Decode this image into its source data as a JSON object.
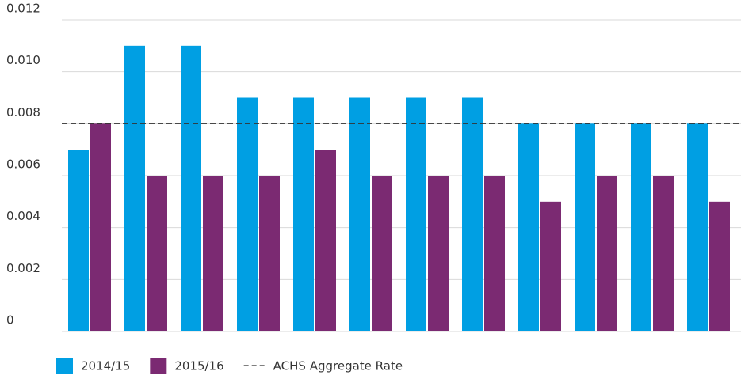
{
  "chart_data": {
    "type": "bar",
    "categories": [
      null,
      null,
      null,
      null,
      null,
      null,
      null,
      null,
      null,
      null,
      null,
      null
    ],
    "series": [
      {
        "name": "2014/15",
        "color": "#009fe3",
        "values": [
          0.007,
          0.011,
          0.011,
          0.009,
          0.009,
          0.009,
          0.009,
          0.009,
          0.008,
          0.008,
          0.008,
          0.008
        ]
      },
      {
        "name": "2015/16",
        "color": "#7b2a72",
        "values": [
          0.008,
          0.006,
          0.006,
          0.006,
          0.007,
          0.006,
          0.006,
          0.006,
          0.005,
          0.006,
          0.006,
          0.005
        ]
      }
    ],
    "reference": {
      "name": "ACHS Aggregate Rate",
      "value": 0.008
    },
    "ylim": [
      0,
      0.012
    ],
    "yticks": [
      0,
      0.002,
      0.004,
      0.006,
      0.008,
      {
        "value": 0.01,
        "label": "0.010"
      },
      0.012
    ],
    "grid": true
  }
}
